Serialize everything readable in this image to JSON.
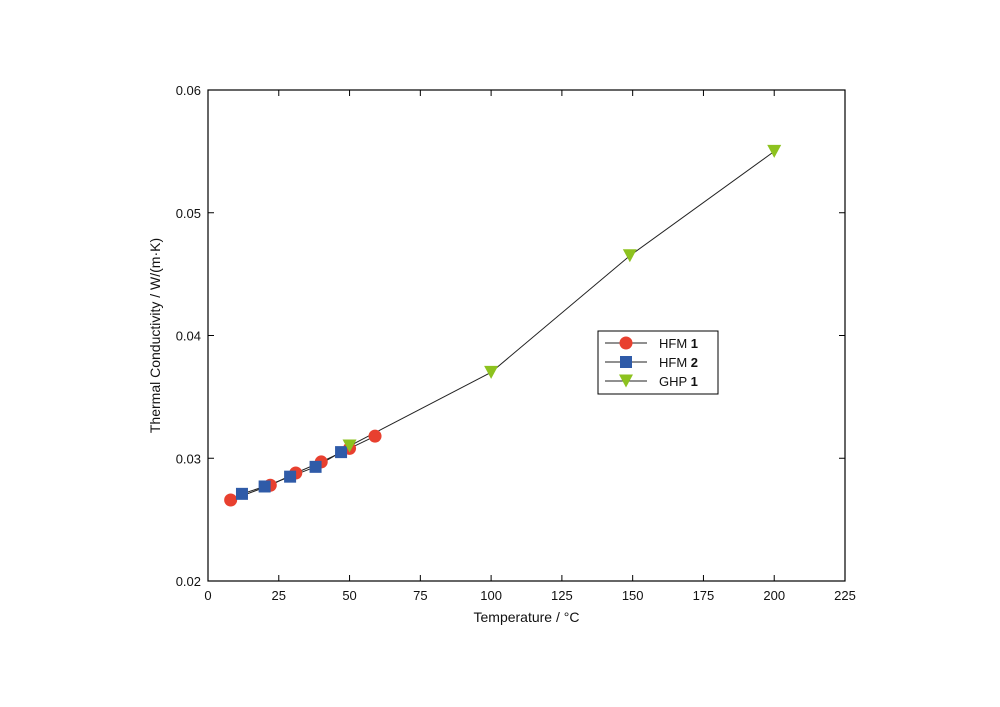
{
  "chart_data": {
    "type": "line",
    "xlabel": "Temperature / °C",
    "ylabel": "Thermal Conductivity / W/(m·K)",
    "xlim": [
      0,
      225
    ],
    "ylim": [
      0.02,
      0.06
    ],
    "x_ticks": [
      0,
      25,
      50,
      75,
      100,
      125,
      150,
      175,
      200,
      225
    ],
    "y_ticks": [
      0.02,
      0.03,
      0.04,
      0.05,
      0.06
    ],
    "x_tick_labels": [
      "0",
      "25",
      "50",
      "75",
      "100",
      "125",
      "150",
      "175",
      "200",
      "225"
    ],
    "y_tick_labels": [
      "0.02",
      "0.03",
      "0.04",
      "0.05",
      "0.06"
    ],
    "grid": false,
    "legend_position": "right-middle",
    "series": [
      {
        "name": "HFM 1",
        "name_prefix": "HFM ",
        "name_number": "1",
        "marker": "circle",
        "color": "#e8402f",
        "x": [
          8,
          22,
          31,
          40,
          50,
          59
        ],
        "y": [
          0.0266,
          0.0278,
          0.0288,
          0.0297,
          0.0308,
          0.0318
        ]
      },
      {
        "name": "HFM 2",
        "name_prefix": "HFM ",
        "name_number": "2",
        "marker": "square",
        "color": "#2f5ba8",
        "x": [
          12,
          20,
          29,
          38,
          47
        ],
        "y": [
          0.0271,
          0.0277,
          0.0285,
          0.0293,
          0.0305
        ]
      },
      {
        "name": "GHP 1",
        "name_prefix": "GHP ",
        "name_number": "1",
        "marker": "triangle-down",
        "color": "#8dc21f",
        "x": [
          50,
          100,
          149,
          200
        ],
        "y": [
          0.031,
          0.037,
          0.0465,
          0.055
        ]
      }
    ]
  }
}
